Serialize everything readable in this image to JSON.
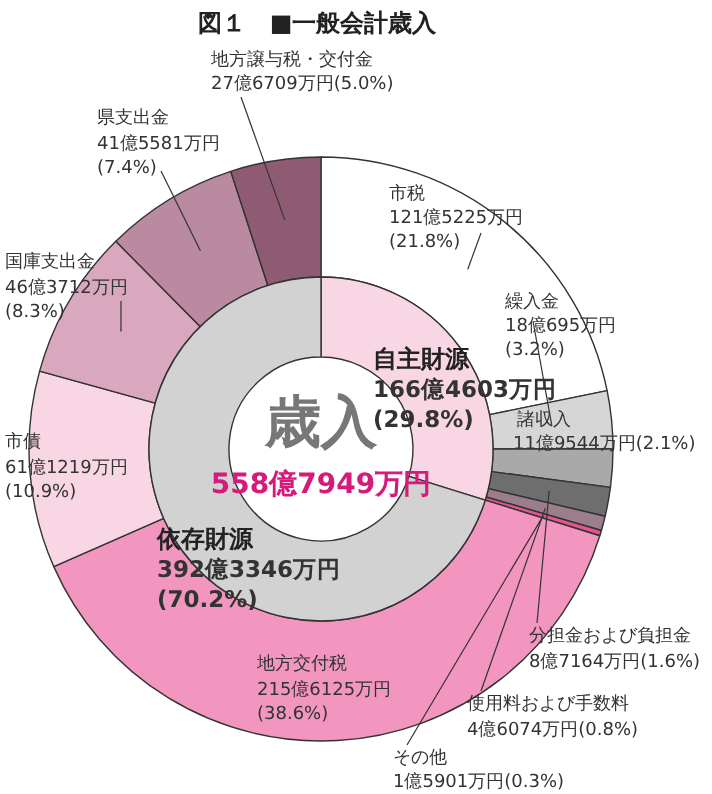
{
  "chart_data": [
    {
      "type": "donut",
      "title": "図１　■一般会計歳入",
      "categories": [
        "市税",
        "繰入金",
        "諸収入",
        "分担金および負担金",
        "使用料および手数料",
        "その他",
        "地方交付税",
        "市債",
        "国庫支出金",
        "県支出金",
        "地方譲与税・交付金"
      ],
      "values": [
        21.8,
        3.2,
        2.1,
        1.6,
        0.8,
        0.3,
        38.6,
        10.9,
        8.3,
        7.4,
        5.0
      ],
      "colors": [
        "#ffffff",
        "#d6d6d6",
        "#a9a9a9",
        "#6e6e6e",
        "#9c7d8c",
        "#e4558f",
        "#f296c0",
        "#f9d6e4",
        "#d9a7be",
        "#b98aa0",
        "#8f5b73"
      ],
      "value_labels": [
        "121億5225万円\n(21.8%)",
        "18億695万円\n(3.2%)",
        "11億9544万円(2.1%)",
        "8億7164万円(1.6%)",
        "4億6074万円(0.8%)",
        "1億5901万円(0.3%)",
        "215億6125万円\n(38.6%)",
        "61億1219万円\n(10.9%)",
        "46億3712万円\n(8.3%)",
        "41億5581万円\n(7.4%)",
        "27億6709万円(5.0%)"
      ]
    },
    {
      "type": "donut",
      "categories": [
        "自主財源",
        "依存財源"
      ],
      "values": [
        29.8,
        70.2
      ],
      "colors": [
        "#f9d6e4",
        "#d2d2d2"
      ],
      "value_labels": [
        "166億4603万円\n(29.8%)",
        "392億3346万円\n(70.2%)"
      ],
      "annotations": [
        "歳入",
        "558億7949万円"
      ]
    }
  ]
}
